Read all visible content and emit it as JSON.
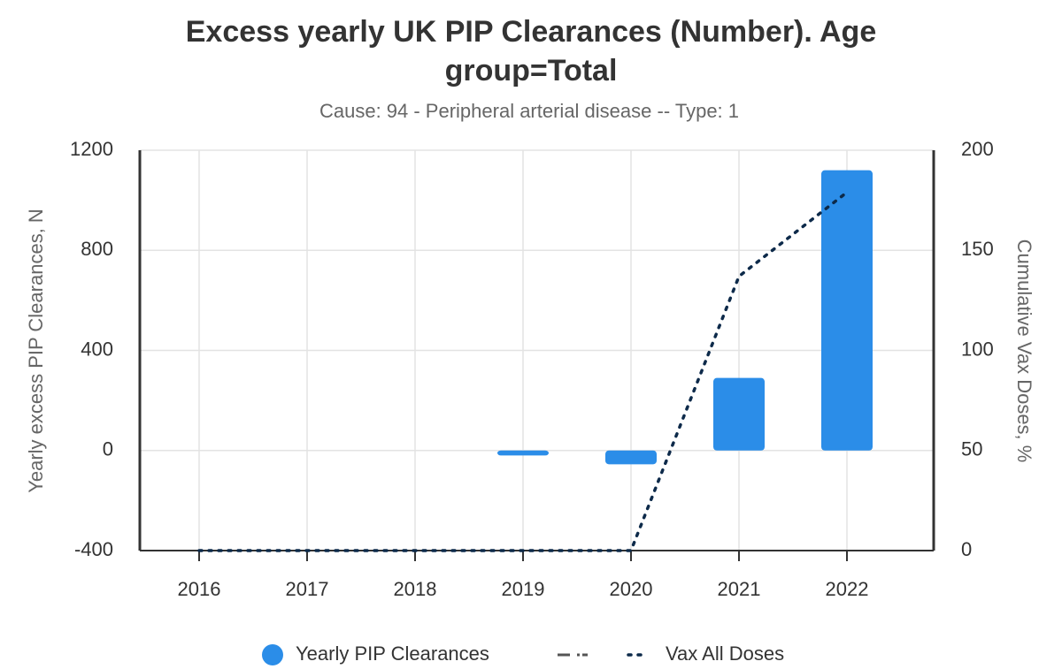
{
  "chart_data": {
    "type": "bar",
    "title": "Excess yearly UK PIP Clearances (Number). Age group=Total",
    "subtitle": "Cause: 94 - Peripheral arterial disease -- Type: 1",
    "ylabel": "Yearly excess PIP Clearances, N",
    "y2label": "Cumulative Vax Doses, %",
    "categories": [
      "2016",
      "2017",
      "2018",
      "2019",
      "2020",
      "2021",
      "2022"
    ],
    "series": [
      {
        "name": "Yearly PIP Clearances",
        "type": "bar",
        "color": "#2b8de8",
        "values": [
          0,
          0,
          0,
          -20,
          -55,
          290,
          1120
        ]
      },
      {
        "name": "Vax All Doses",
        "type": "line",
        "axis": "y2",
        "color": "#0d2a4a",
        "values": [
          0,
          0,
          0,
          0,
          0,
          137,
          179
        ]
      }
    ],
    "ylim": [
      -400,
      1200
    ],
    "yticks": [
      -400,
      0,
      400,
      800,
      1200
    ],
    "y2lim": [
      0,
      200
    ],
    "y2ticks": [
      0,
      50,
      100,
      150,
      200
    ],
    "grid": true
  }
}
